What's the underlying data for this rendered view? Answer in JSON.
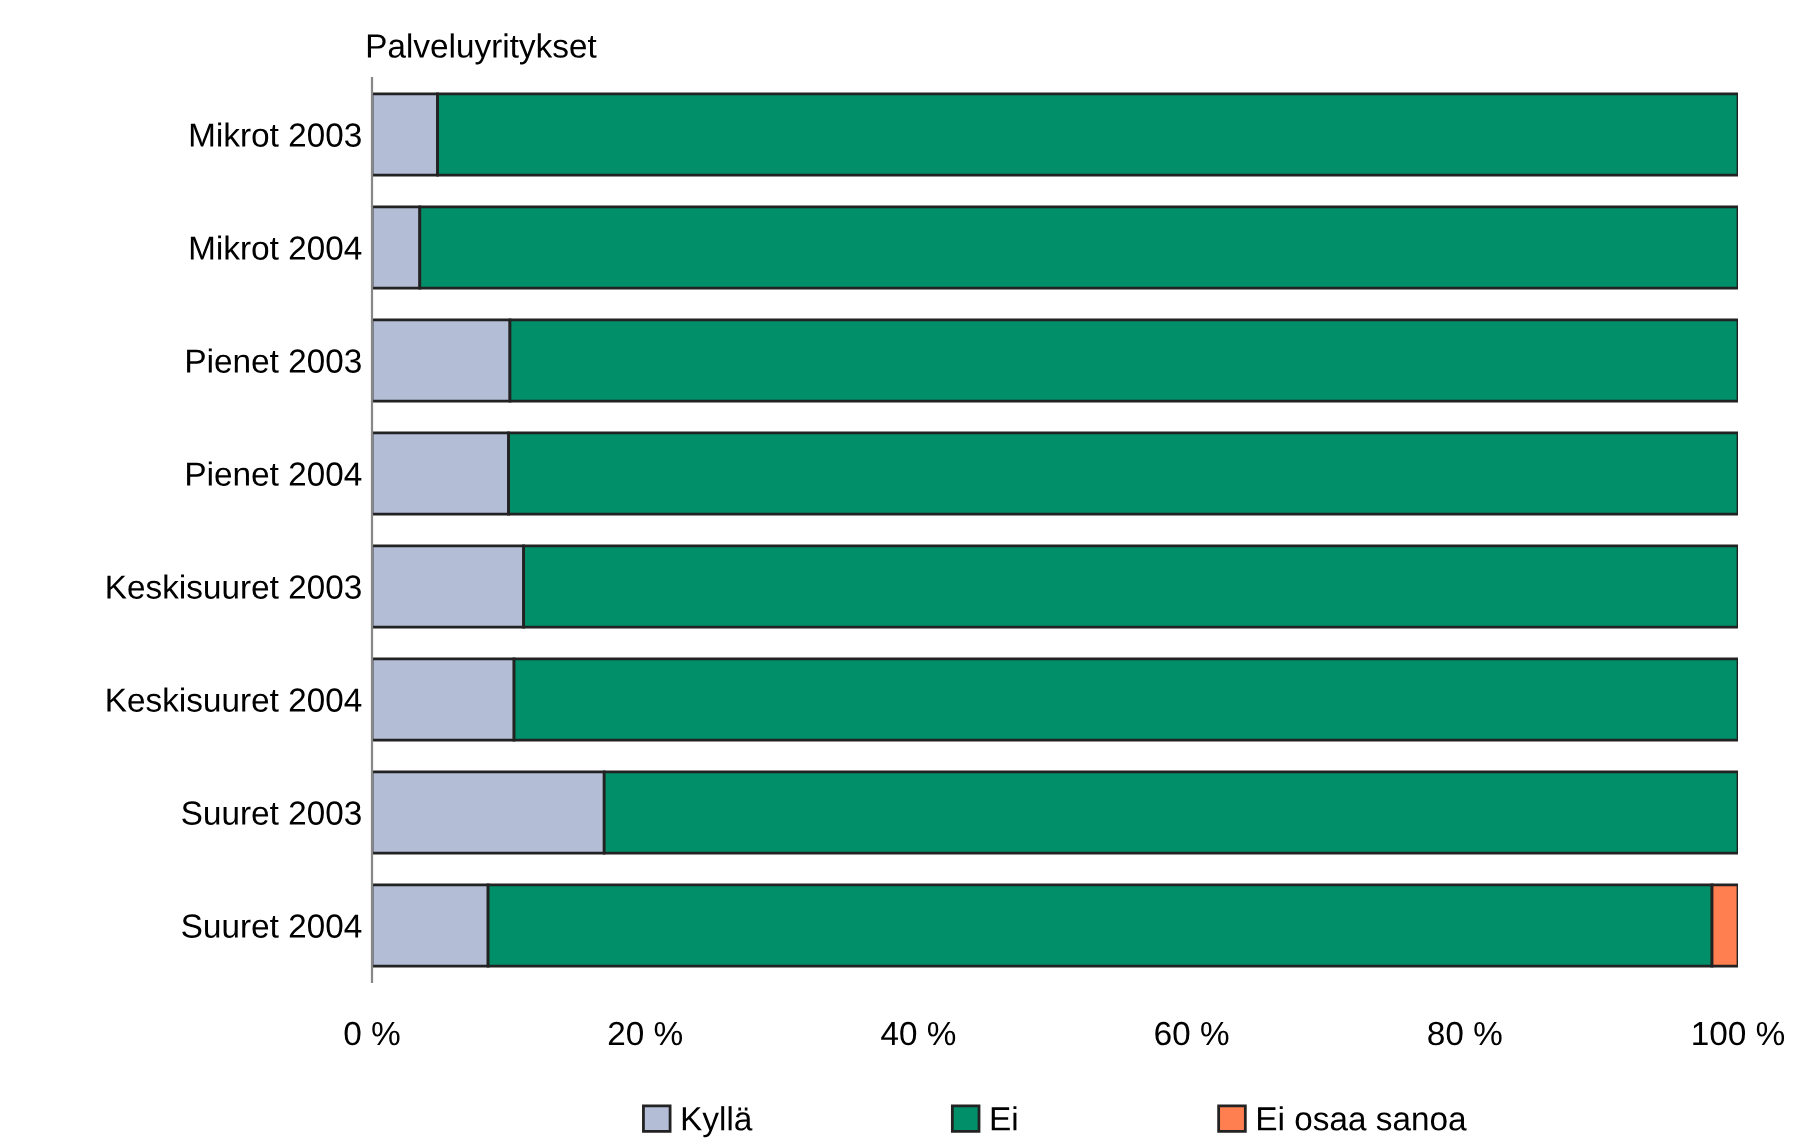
{
  "chart_data": {
    "type": "bar",
    "orientation": "horizontal",
    "stacked": true,
    "title": "Palveluyritykset",
    "categories": [
      "Mikrot 2003",
      "Mikrot 2004",
      "Pienet 2003",
      "Pienet 2004",
      "Keskisuuret 2003",
      "Keskisuuret 2004",
      "Suuret 2003",
      "Suuret 2004"
    ],
    "series": [
      {
        "name": "Kyllä",
        "color": "#b3bdd6",
        "values": [
          4.8,
          3.5,
          10.1,
          10.0,
          11.1,
          10.4,
          17.0,
          8.5
        ]
      },
      {
        "name": "Ei",
        "color": "#008f68",
        "values": [
          95.2,
          96.5,
          89.9,
          90.0,
          88.9,
          89.6,
          83.0,
          89.6
        ]
      },
      {
        "name": "Ei osaa sanoa",
        "color": "#ff7f50",
        "values": [
          null,
          null,
          null,
          null,
          null,
          null,
          null,
          1.9
        ]
      }
    ],
    "xlim": [
      0,
      100
    ],
    "xticks": [
      {
        "value": 0,
        "label": "0 %"
      },
      {
        "value": 20,
        "label": "20 %"
      },
      {
        "value": 40,
        "label": "40 %"
      },
      {
        "value": 60,
        "label": "60 %"
      },
      {
        "value": 80,
        "label": "80 %"
      },
      {
        "value": 100,
        "label": "100 %"
      }
    ],
    "grid": false,
    "legend": "bottom"
  }
}
